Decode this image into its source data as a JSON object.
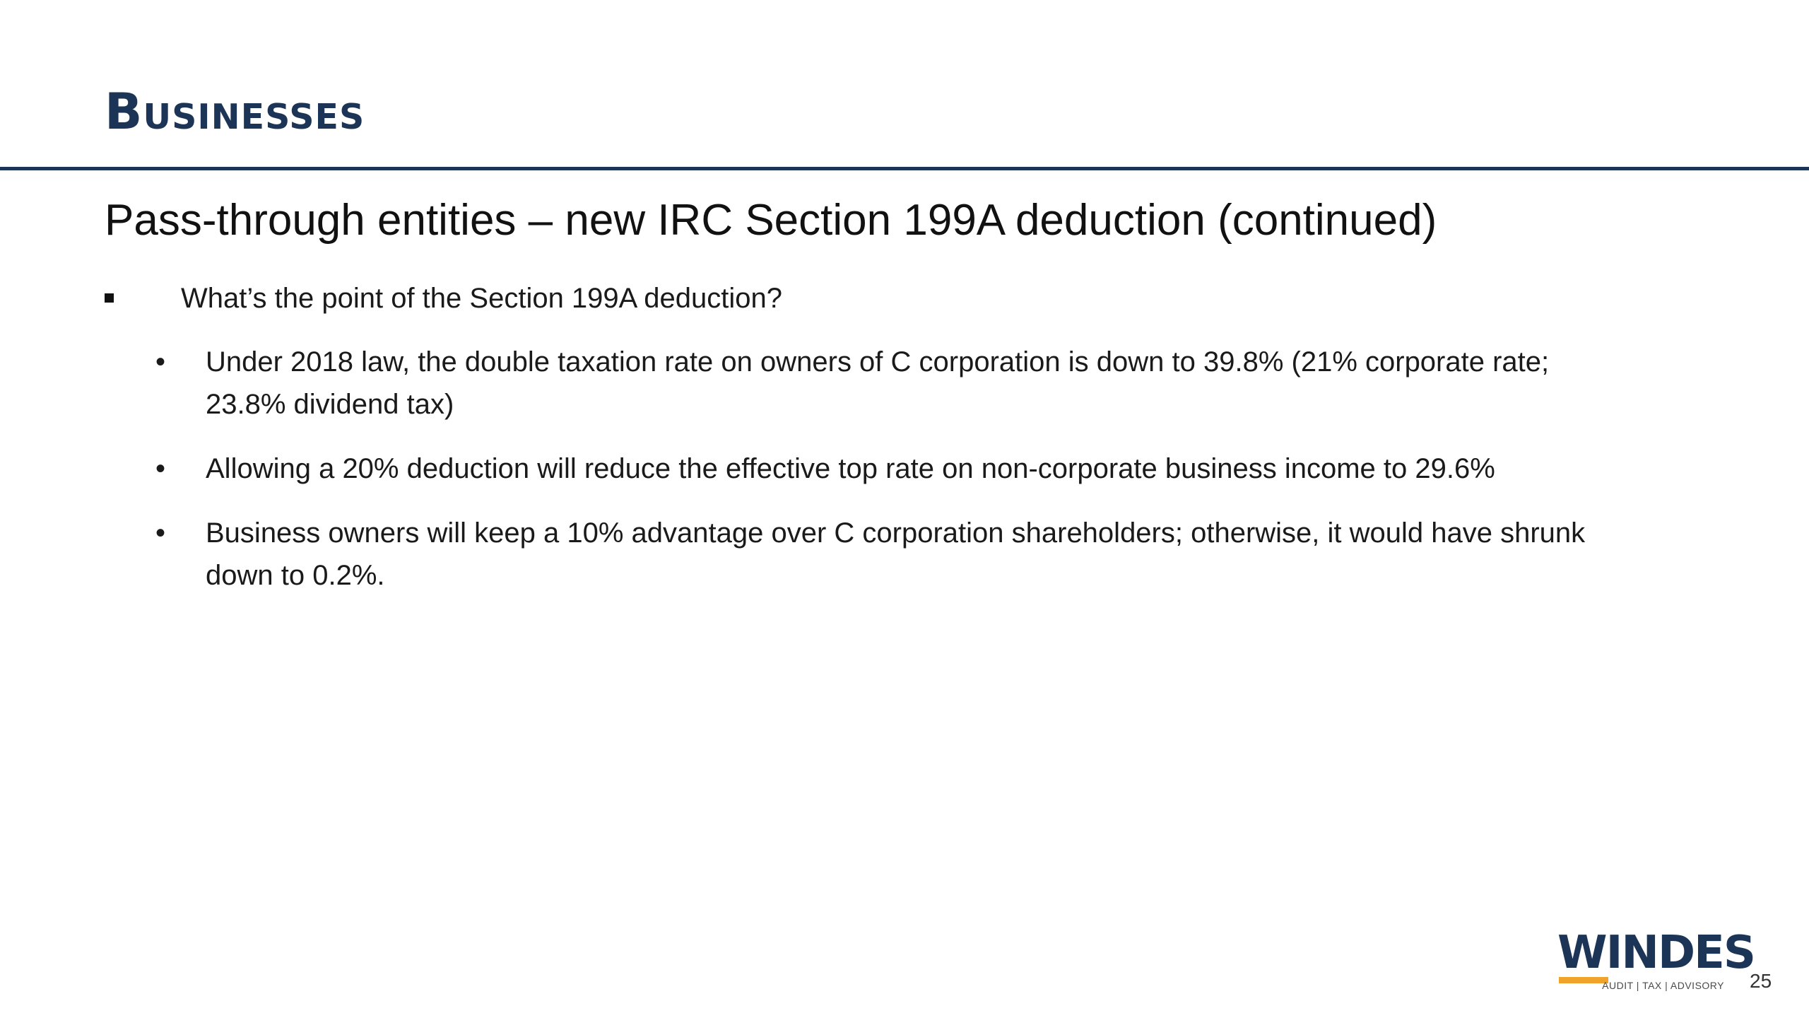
{
  "slide": {
    "title": "Businesses",
    "subtitle": "Pass-through entities – new IRC Section 199A deduction (continued)",
    "bullet": "What’s the point of the Section 199A deduction?",
    "sub_bullets": [
      "Under 2018 law, the double taxation rate on owners of C corporation is down to 39.8% (21% corporate rate; 23.8% dividend tax)",
      "Allowing a 20% deduction will reduce the effective top rate on non-corporate business income to 29.6%",
      "Business owners will keep a 10% advantage over C corporation shareholders; otherwise, it would have shrunk down to 0.2%."
    ],
    "page_number": "25"
  },
  "logo": {
    "name": "WINDES",
    "tagline": "AUDIT | TAX | ADVISORY"
  },
  "colors": {
    "title": "#1c3557",
    "rule": "#1c3557",
    "logo_accent": "#f0a32a",
    "text": "#111111"
  }
}
